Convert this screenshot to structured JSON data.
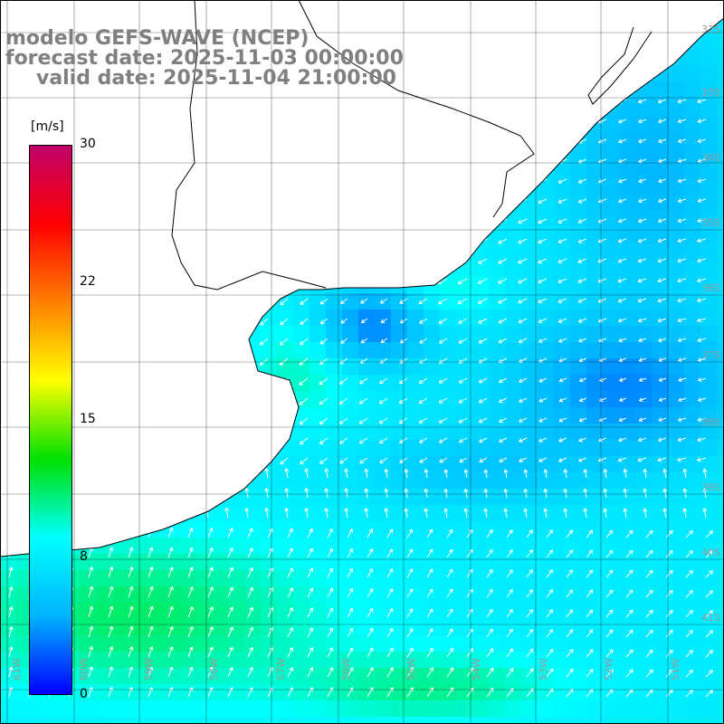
{
  "title": {
    "model": "modelo GEFS-WAVE (NCEP)",
    "forecast": "forecast date: 2025-11-03 00:00:00",
    "valid": "valid date: 2025-11-04 21:00:00"
  },
  "colorbar": {
    "unit": "[m/s]",
    "ticks": [
      "30",
      "22",
      "15",
      "8",
      "0"
    ],
    "tick_values": [
      30,
      22,
      15,
      8,
      0
    ],
    "min": 0,
    "max": 30,
    "colors": [
      "#0000ff",
      "#00b4ff",
      "#00ffff",
      "#00e000",
      "#ffff00",
      "#ff8000",
      "#ff0000",
      "#c0006a"
    ]
  },
  "grid": {
    "lat_labels": [
      "32S",
      "33S",
      "34S",
      "35S",
      "36S",
      "37S",
      "38S",
      "39S",
      "40S",
      "41S"
    ],
    "lon_labels": [
      "61W",
      "60W",
      "59W",
      "58W",
      "57W",
      "56W",
      "55W",
      "54W",
      "53W",
      "52W",
      "51W"
    ]
  },
  "map_colors": {
    "land": "#ffffff",
    "coast": "#000000",
    "grid_line": "#000000",
    "arrow": "#ffffff"
  }
}
